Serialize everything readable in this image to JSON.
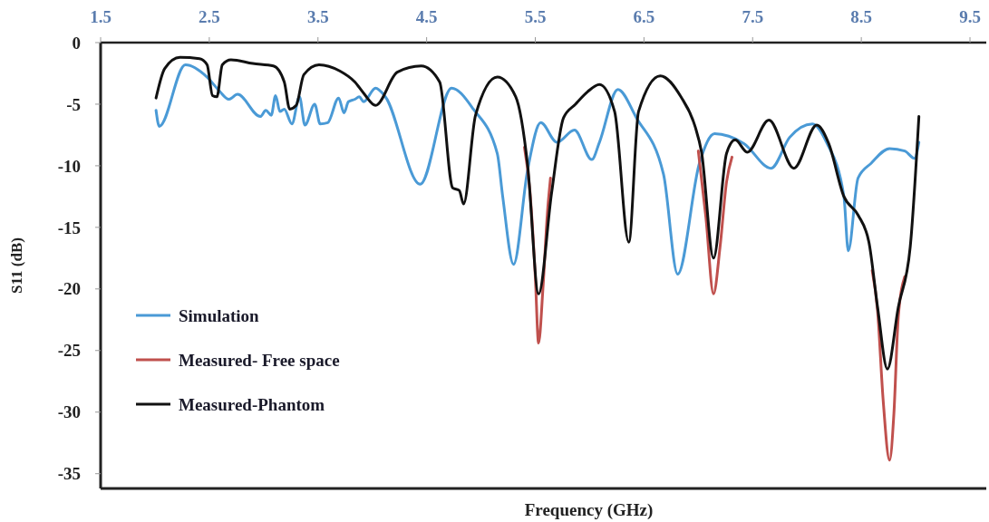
{
  "chart_data": {
    "type": "line",
    "xlabel": "Frequency (GHz)",
    "ylabel": "S11 (dB)",
    "xlim": [
      1.5,
      9.65
    ],
    "xticks": [
      1.5,
      2.5,
      3.5,
      4.5,
      5.5,
      6.5,
      7.5,
      8.5,
      9.5
    ],
    "ylim": [
      -36.2,
      0
    ],
    "yticks": [
      0,
      -5,
      -10,
      -15,
      -20,
      -25,
      -30,
      -35
    ],
    "grid": false,
    "legend": "left",
    "marker": "none",
    "line_style": "solid",
    "series": [
      {
        "name": "Simulation",
        "color": "#4a9ad6",
        "x": [
          2.01,
          2.04,
          2.28,
          2.48,
          2.59,
          2.68,
          2.76,
          2.97,
          3.02,
          3.07,
          3.11,
          3.15,
          3.19,
          3.26,
          3.33,
          3.38,
          3.47,
          3.52,
          3.59,
          3.69,
          3.74,
          3.78,
          3.84,
          3.88,
          3.92,
          4.03,
          4.12,
          4.44,
          4.73,
          4.93,
          5.15,
          5.2,
          5.3,
          5.43,
          5.55,
          5.7,
          5.86,
          6.02,
          6.09,
          6.26,
          6.43,
          6.68,
          6.81,
          7.01,
          7.15,
          7.28,
          7.42,
          7.67,
          7.84,
          8.05,
          8.18,
          8.34,
          8.38,
          8.47,
          8.59,
          8.76,
          8.9,
          8.99,
          9.03
        ],
        "values": [
          -5.5,
          -6.8,
          -1.8,
          -2.8,
          -3.9,
          -4.6,
          -4.2,
          -6.0,
          -5.5,
          -5.9,
          -4.3,
          -5.6,
          -5.4,
          -6.6,
          -4.4,
          -6.7,
          -5.0,
          -6.6,
          -6.5,
          -4.5,
          -5.7,
          -4.8,
          -4.6,
          -4.4,
          -4.8,
          -3.7,
          -4.4,
          -11.5,
          -3.7,
          -5.4,
          -9.0,
          -12.5,
          -18.0,
          -10.3,
          -6.5,
          -8.1,
          -7.1,
          -9.5,
          -8.1,
          -3.8,
          -6.1,
          -10.7,
          -18.8,
          -9.8,
          -7.4,
          -7.6,
          -8.2,
          -10.2,
          -7.7,
          -6.6,
          -8.1,
          -12.5,
          -16.9,
          -11.0,
          -9.8,
          -8.6,
          -8.8,
          -9.4,
          -8.1
        ]
      },
      {
        "name": "Measured- Free space",
        "color": "#c0504d",
        "x": [
          5.4,
          5.45,
          5.5,
          5.53,
          5.57,
          5.61,
          5.64,
          null,
          7.0,
          7.07,
          7.14,
          7.2,
          7.26,
          7.31,
          null,
          8.6,
          8.65,
          8.7,
          8.76,
          8.8,
          8.84,
          8.9
        ],
        "values": [
          -8.5,
          -12,
          -19,
          -24.4,
          -20,
          -14,
          -11,
          null,
          -8.8,
          -14.2,
          -20.4,
          -16.6,
          -11.3,
          -9.3,
          null,
          -18.5,
          -21.8,
          -28.9,
          -33.9,
          -30.1,
          -22.3,
          -19
        ]
      },
      {
        "name": "Measured-Phantom",
        "color": "#111111",
        "x": [
          2.01,
          2.09,
          2.23,
          2.41,
          2.48,
          2.53,
          2.57,
          2.62,
          2.7,
          2.9,
          3.09,
          3.19,
          3.24,
          3.3,
          3.37,
          3.51,
          3.7,
          3.84,
          3.92,
          4.03,
          4.23,
          4.45,
          4.62,
          4.74,
          4.8,
          4.84,
          4.95,
          5.15,
          5.32,
          5.43,
          5.53,
          5.65,
          5.76,
          5.87,
          5.98,
          6.09,
          6.23,
          6.36,
          6.45,
          6.65,
          6.84,
          6.97,
          7.03,
          7.14,
          7.26,
          7.34,
          7.45,
          7.65,
          7.88,
          8.09,
          8.2,
          8.34,
          8.47,
          8.57,
          8.65,
          8.74,
          8.84,
          8.95,
          9.03
        ],
        "values": [
          -4.5,
          -2.1,
          -1.2,
          -1.3,
          -1.8,
          -4.3,
          -4.4,
          -1.8,
          -1.4,
          -1.7,
          -1.9,
          -3.2,
          -5.4,
          -5.1,
          -2.6,
          -1.8,
          -2.3,
          -3.2,
          -4.1,
          -5.1,
          -2.4,
          -1.9,
          -3.2,
          -11.8,
          -12.0,
          -13.1,
          -5.9,
          -2.8,
          -4.4,
          -10.0,
          -20.4,
          -12.2,
          -6.1,
          -5.0,
          -4.0,
          -3.4,
          -5.6,
          -16.2,
          -5.6,
          -2.7,
          -4.4,
          -6.8,
          -8.9,
          -17.5,
          -9.0,
          -7.9,
          -8.9,
          -6.3,
          -10.2,
          -6.7,
          -8.2,
          -12.5,
          -14.0,
          -16.2,
          -21.5,
          -26.5,
          -21.5,
          -16.6,
          -6.0
        ]
      }
    ]
  }
}
